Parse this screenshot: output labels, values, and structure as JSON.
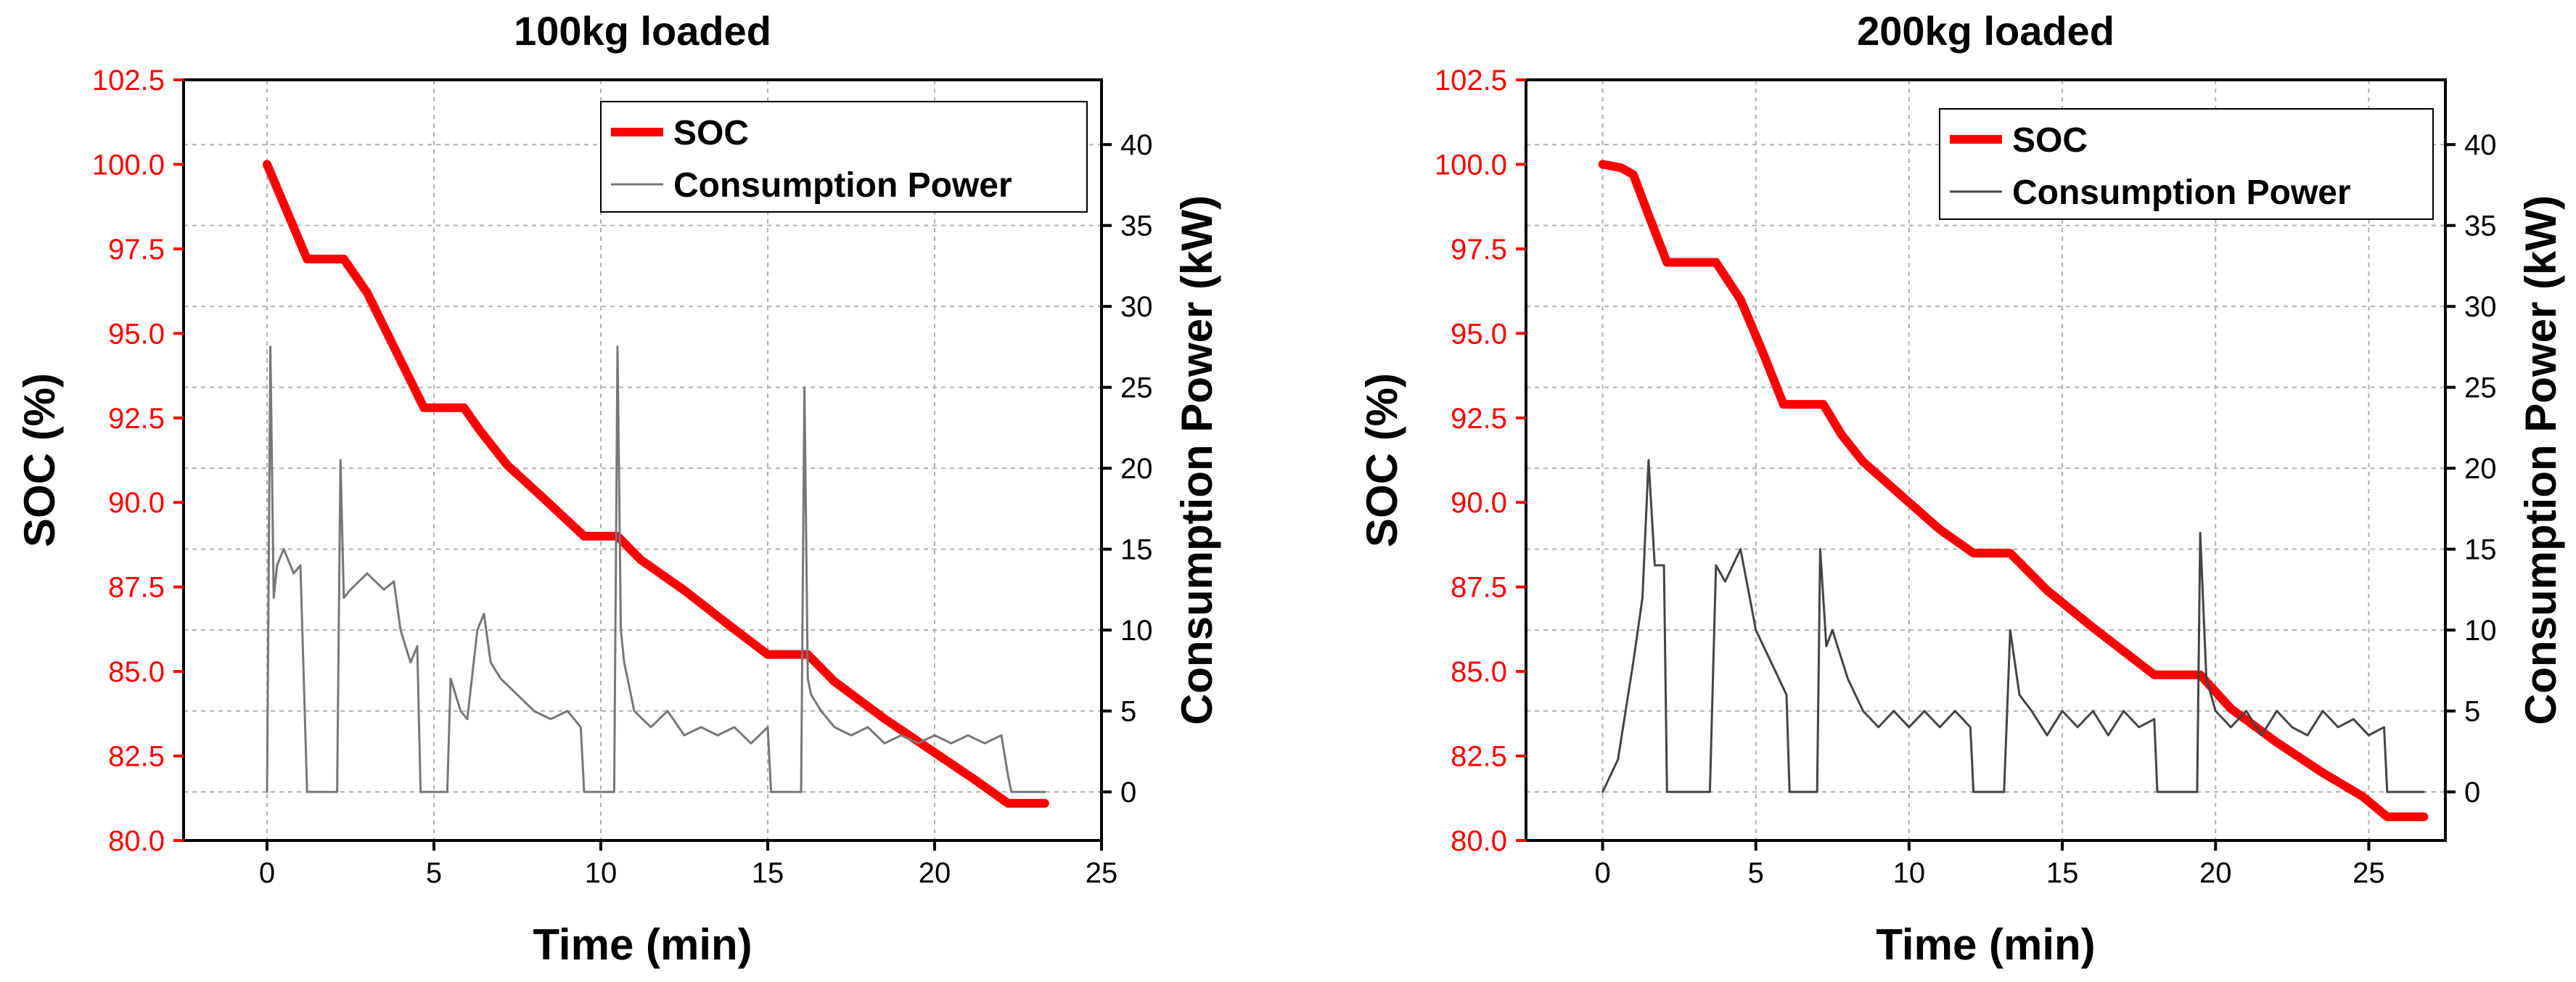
{
  "chart_data": [
    {
      "type": "line",
      "title": "100kg loaded",
      "xlabel": "Time (min)",
      "ylabel_left": "SOC (%)",
      "ylabel_right": "Consumption Power (kW)",
      "xlim": [
        -2.5,
        25
      ],
      "ylim_left": [
        80.0,
        102.5
      ],
      "ylim_right": [
        -3,
        44
      ],
      "x_ticks": [
        "0",
        "5",
        "10",
        "15",
        "20",
        "25"
      ],
      "y_left_ticks": [
        "80.0",
        "82.5",
        "85.0",
        "87.5",
        "90.0",
        "92.5",
        "95.0",
        "97.5",
        "100.0",
        "102.5"
      ],
      "y_right_ticks": [
        "0",
        "5",
        "10",
        "15",
        "20",
        "25",
        "30",
        "35",
        "40"
      ],
      "grid": true,
      "legend": [
        "SOC",
        "Consumption Power"
      ],
      "legend_position": "top-right",
      "series": [
        {
          "name": "SOC",
          "color": "#ff0000",
          "axis": "left",
          "x": [
            0,
            1.2,
            2.3,
            3,
            4,
            4.7,
            5.9,
            6.4,
            7.2,
            8.2,
            9.5,
            10.5,
            11.2,
            12.5,
            13.8,
            15.0,
            16.2,
            17,
            18.5,
            20,
            21.2,
            22.2,
            23.3
          ],
          "y": [
            100.0,
            97.2,
            97.2,
            96.2,
            94.2,
            92.8,
            92.8,
            92.1,
            91.1,
            90.2,
            89.0,
            89.0,
            88.3,
            87.4,
            86.4,
            85.5,
            85.5,
            84.7,
            83.6,
            82.6,
            81.8,
            81.1,
            81.1
          ]
        },
        {
          "name": "Consumption Power",
          "color": "#777777",
          "axis": "right",
          "x": [
            0,
            0.1,
            0.2,
            0.3,
            0.5,
            0.8,
            1.0,
            1.2,
            1.25,
            2.1,
            2.2,
            2.3,
            2.5,
            3,
            3.5,
            3.8,
            4,
            4.3,
            4.5,
            4.6,
            5.4,
            5.5,
            5.8,
            6,
            6.3,
            6.5,
            6.7,
            7,
            7.5,
            8,
            8.5,
            9,
            9.4,
            9.5,
            10.4,
            10.5,
            10.6,
            10.7,
            11,
            11.5,
            12,
            12.5,
            13,
            13.5,
            14,
            14.5,
            15,
            15.1,
            16.0,
            16.1,
            16.2,
            16.3,
            16.6,
            17,
            17.5,
            18,
            18.5,
            19,
            19.5,
            20,
            20.5,
            21,
            21.5,
            22,
            22.2,
            22.3,
            23.3
          ],
          "y": [
            0,
            27.5,
            12,
            14,
            15,
            13.5,
            14,
            0,
            0,
            0,
            20.5,
            12,
            12.5,
            13.5,
            12.5,
            13,
            10,
            8,
            9,
            0,
            0,
            7,
            5,
            4.5,
            10,
            11,
            8,
            7,
            6,
            5,
            4.5,
            5,
            4,
            0,
            0,
            27.5,
            10,
            8,
            5,
            4,
            5,
            3.5,
            4,
            3.5,
            4,
            3,
            4,
            0,
            0,
            25,
            7,
            6,
            5,
            4,
            3.5,
            4,
            3,
            3.5,
            3,
            3.5,
            3,
            3.5,
            3,
            3.5,
            1,
            0,
            0
          ]
        }
      ]
    },
    {
      "type": "line",
      "title": "200kg loaded",
      "xlabel": "Time (min)",
      "ylabel_left": "SOC (%)",
      "ylabel_right": "Consumption Power (kW)",
      "xlim": [
        -2.5,
        27.5
      ],
      "ylim_left": [
        80.0,
        102.5
      ],
      "ylim_right": [
        -3,
        44
      ],
      "x_ticks": [
        "0",
        "5",
        "10",
        "15",
        "20",
        "25"
      ],
      "y_left_ticks": [
        "80.0",
        "82.5",
        "85.0",
        "87.5",
        "90.0",
        "92.5",
        "95.0",
        "97.5",
        "100.0",
        "102.5"
      ],
      "y_right_ticks": [
        "0",
        "5",
        "10",
        "15",
        "20",
        "25",
        "30",
        "35",
        "40"
      ],
      "grid": true,
      "legend": [
        "SOC",
        "Consumption Power"
      ],
      "legend_position": "top-right",
      "series": [
        {
          "name": "SOC",
          "color": "#ff0000",
          "axis": "left",
          "x": [
            0,
            0.6,
            1,
            1.5,
            2.1,
            3.7,
            4.5,
            5.2,
            5.9,
            7.2,
            7.8,
            8.5,
            10,
            11,
            12.1,
            13.3,
            14.5,
            16,
            18.0,
            19.5,
            20.5,
            22,
            23.5,
            24.8,
            25.6,
            26.8
          ],
          "y": [
            100.0,
            99.9,
            99.7,
            98.5,
            97.1,
            97.1,
            96.0,
            94.5,
            92.9,
            92.9,
            92.0,
            91.2,
            90.0,
            89.2,
            88.5,
            88.5,
            87.4,
            86.3,
            84.9,
            84.9,
            83.9,
            82.9,
            82.0,
            81.3,
            80.7,
            80.7
          ]
        },
        {
          "name": "Consumption Power",
          "color": "#444444",
          "axis": "right",
          "x": [
            0,
            0.5,
            1,
            1.3,
            1.5,
            1.7,
            2,
            2.1,
            3.5,
            3.7,
            4,
            4.5,
            5,
            5.5,
            6,
            6.1,
            7.0,
            7.1,
            7.3,
            7.5,
            8,
            8.5,
            9,
            9.5,
            10,
            10.5,
            11,
            11.5,
            12.0,
            12.1,
            13.1,
            13.3,
            13.6,
            14,
            14.5,
            15,
            15.5,
            16,
            16.5,
            17,
            17.5,
            18,
            18.1,
            19.4,
            19.5,
            19.7,
            20,
            20.5,
            21,
            21.5,
            22,
            22.5,
            23,
            23.5,
            24,
            24.5,
            25,
            25.5,
            25.6,
            26.8
          ],
          "y": [
            0,
            2,
            8,
            12,
            20.5,
            14,
            14,
            0,
            0,
            14,
            13,
            15,
            10,
            8,
            6,
            0,
            0,
            15,
            9,
            10,
            7,
            5,
            4,
            5,
            4,
            5,
            4,
            5,
            4,
            0,
            0,
            10,
            6,
            5,
            3.5,
            5,
            4,
            5,
            3.5,
            5,
            4,
            4.5,
            0,
            0,
            16,
            7,
            5,
            4,
            5,
            3.5,
            5,
            4,
            3.5,
            5,
            4,
            4.5,
            3.5,
            4,
            0,
            0
          ]
        }
      ]
    }
  ]
}
